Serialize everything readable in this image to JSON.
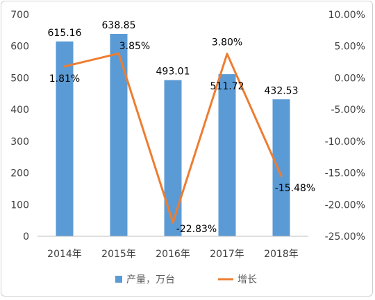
{
  "chart_data": {
    "type": "bar",
    "categories": [
      "2014年",
      "2015年",
      "2016年",
      "2017年",
      "2018年"
    ],
    "series": [
      {
        "name": "产量，万台",
        "type": "bar",
        "axis": "left",
        "color": "#5b9bd5",
        "values": [
          615.16,
          638.85,
          493.01,
          511.72,
          432.53
        ],
        "labels": [
          "615.16",
          "638.85",
          "493.01",
          "511.72",
          "432.53"
        ]
      },
      {
        "name": "增长",
        "type": "line",
        "axis": "right",
        "color": "#ed7d31",
        "values": [
          1.81,
          3.85,
          -22.83,
          3.8,
          -15.48
        ],
        "labels": [
          "1.81%",
          "3.85%",
          "-22.83%",
          "3.80%",
          "-15.48%"
        ]
      }
    ],
    "y_left": {
      "range": [
        0,
        700
      ],
      "ticks": [
        0,
        100,
        200,
        300,
        400,
        500,
        600,
        700
      ],
      "tick_labels": [
        "0",
        "100",
        "200",
        "300",
        "400",
        "500",
        "600",
        "700"
      ]
    },
    "y_right": {
      "range": [
        -25,
        10
      ],
      "ticks": [
        -25,
        -20,
        -15,
        -10,
        -5,
        0,
        5,
        10
      ],
      "tick_labels": [
        "-25.00%",
        "-20.00%",
        "-15.00%",
        "-10.00%",
        "-5.00%",
        "0.00%",
        "5.00%",
        "10.00%"
      ]
    },
    "grid": false,
    "legend_position": "bottom"
  }
}
